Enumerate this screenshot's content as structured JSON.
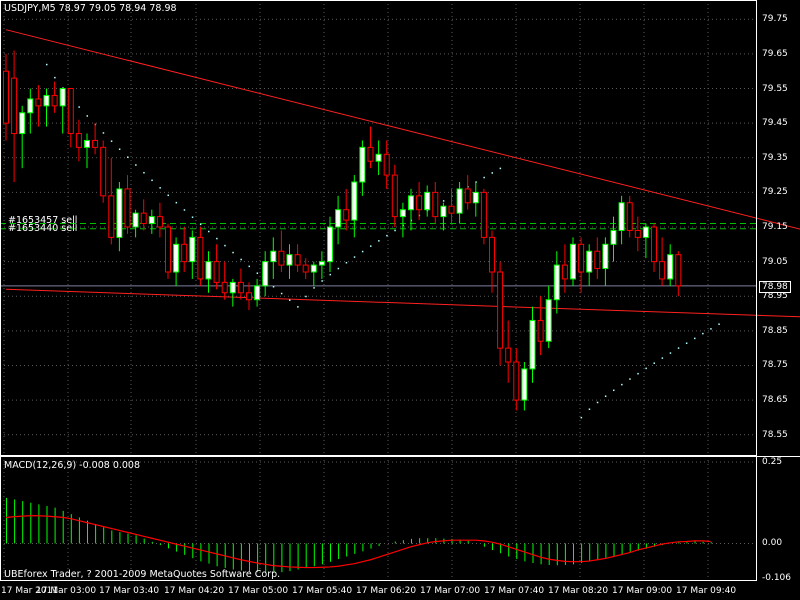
{
  "header": {
    "symbol_line": "USDJPY,M5  78.97 79.05 78.94 78.98"
  },
  "orders": [
    {
      "label": "#1653457 sell"
    },
    {
      "label": "#1653440 sell"
    }
  ],
  "indicator": {
    "label": "MACD(12,26,9) -0.008 0.008"
  },
  "footer": {
    "copyright": "UBEforex Trader, ? 2001-2009 MetaQuotes Software Corp."
  },
  "current_price": "78.98",
  "price_axis": [
    "79.75",
    "79.65",
    "79.55",
    "79.45",
    "79.35",
    "79.25",
    "79.15",
    "79.05",
    "78.95",
    "78.85",
    "78.75",
    "78.65",
    "78.55"
  ],
  "macd_axis": [
    "0.25",
    "0.00",
    "-0.106"
  ],
  "time_axis": [
    "17 Mar 2011",
    "17 Mar 03:00",
    "17 Mar 03:40",
    "17 Mar 04:20",
    "17 Mar 05:00",
    "17 Mar 05:40",
    "17 Mar 06:20",
    "17 Mar 07:00",
    "17 Mar 07:40",
    "17 Mar 08:20",
    "17 Mar 09:00",
    "17 Mar 09:40"
  ],
  "colors": {
    "background": "#000000",
    "grid": "#5a5a5a",
    "bull": "#ffffff",
    "bear": "#000000",
    "candle_outline_bull": "#00ff00",
    "candle_outline_bear": "#ff0000",
    "trendline": "#ff2020",
    "sar": "#b0ffff",
    "order_line": "#00c000",
    "macd_hist": "#00ff00",
    "signal": "#ff0000"
  },
  "chart_data": {
    "type": "candlestick",
    "timeframe": "M5",
    "price_range": [
      78.5,
      79.8
    ],
    "candles": [
      [
        79.6,
        79.65,
        79.4,
        79.45
      ],
      [
        79.58,
        79.66,
        79.28,
        79.42
      ],
      [
        79.42,
        79.5,
        79.32,
        79.48
      ],
      [
        79.48,
        79.55,
        79.42,
        79.52
      ],
      [
        79.52,
        79.56,
        79.44,
        79.5
      ],
      [
        79.5,
        79.55,
        79.44,
        79.53
      ],
      [
        79.53,
        79.57,
        79.48,
        79.5
      ],
      [
        79.5,
        79.55,
        79.42,
        79.55
      ],
      [
        79.55,
        79.55,
        79.38,
        79.42
      ],
      [
        79.42,
        79.46,
        79.34,
        79.38
      ],
      [
        79.38,
        79.42,
        79.32,
        79.4
      ],
      [
        79.4,
        79.45,
        79.36,
        79.38
      ],
      [
        79.38,
        79.4,
        79.22,
        79.24
      ],
      [
        79.24,
        79.35,
        79.1,
        79.12
      ],
      [
        79.12,
        79.28,
        79.08,
        79.26
      ],
      [
        79.26,
        79.3,
        79.13,
        79.15
      ],
      [
        79.15,
        79.2,
        79.12,
        79.19
      ],
      [
        79.19,
        79.23,
        79.14,
        79.16
      ],
      [
        79.16,
        79.2,
        79.13,
        79.18
      ],
      [
        79.18,
        79.22,
        79.12,
        79.15
      ],
      [
        79.15,
        79.16,
        79.0,
        79.02
      ],
      [
        79.02,
        79.12,
        78.98,
        79.1
      ],
      [
        79.1,
        79.15,
        79.02,
        79.05
      ],
      [
        79.05,
        79.14,
        79.0,
        79.12
      ],
      [
        79.12,
        79.15,
        78.98,
        79.0
      ],
      [
        79.0,
        79.08,
        78.96,
        79.05
      ],
      [
        79.05,
        79.1,
        78.97,
        78.99
      ],
      [
        78.99,
        79.05,
        78.94,
        78.96
      ],
      [
        78.96,
        79.0,
        78.92,
        78.99
      ],
      [
        78.99,
        79.03,
        78.94,
        78.96
      ],
      [
        78.96,
        78.99,
        78.91,
        78.94
      ],
      [
        78.94,
        79.0,
        78.92,
        78.98
      ],
      [
        78.98,
        79.08,
        78.95,
        79.05
      ],
      [
        79.05,
        79.12,
        79.0,
        79.08
      ],
      [
        79.08,
        79.14,
        79.02,
        79.04
      ],
      [
        79.04,
        79.1,
        79.0,
        79.07
      ],
      [
        79.07,
        79.1,
        79.02,
        79.04
      ],
      [
        79.04,
        79.06,
        79.0,
        79.02
      ],
      [
        79.02,
        79.05,
        78.98,
        79.04
      ],
      [
        79.04,
        79.08,
        79.0,
        79.05
      ],
      [
        79.05,
        79.18,
        79.02,
        79.15
      ],
      [
        79.15,
        79.24,
        79.1,
        79.2
      ],
      [
        79.2,
        79.26,
        79.14,
        79.17
      ],
      [
        79.17,
        79.3,
        79.12,
        79.28
      ],
      [
        79.28,
        79.4,
        79.24,
        79.38
      ],
      [
        79.38,
        79.44,
        79.32,
        79.34
      ],
      [
        79.34,
        79.4,
        79.3,
        79.36
      ],
      [
        79.36,
        79.4,
        79.26,
        79.3
      ],
      [
        79.3,
        79.33,
        79.15,
        79.18
      ],
      [
        79.18,
        79.22,
        79.12,
        79.2
      ],
      [
        79.2,
        79.26,
        79.14,
        79.24
      ],
      [
        79.24,
        79.28,
        79.17,
        79.2
      ],
      [
        79.2,
        79.27,
        79.18,
        79.25
      ],
      [
        79.25,
        79.28,
        79.16,
        79.18
      ],
      [
        79.18,
        79.22,
        79.14,
        79.21
      ],
      [
        79.21,
        79.26,
        79.16,
        79.19
      ],
      [
        79.19,
        79.28,
        79.16,
        79.26
      ],
      [
        79.26,
        79.3,
        79.2,
        79.22
      ],
      [
        79.22,
        79.28,
        79.18,
        79.25
      ],
      [
        79.25,
        79.26,
        79.1,
        79.12
      ],
      [
        79.12,
        79.14,
        78.96,
        79.02
      ],
      [
        79.02,
        79.05,
        78.75,
        78.8
      ],
      [
        78.8,
        78.88,
        78.7,
        78.76
      ],
      [
        78.76,
        78.8,
        78.62,
        78.65
      ],
      [
        78.65,
        78.76,
        78.62,
        78.74
      ],
      [
        78.74,
        78.92,
        78.7,
        78.88
      ],
      [
        78.88,
        78.95,
        78.78,
        78.82
      ],
      [
        78.82,
        78.98,
        78.8,
        78.94
      ],
      [
        78.94,
        79.08,
        78.9,
        79.04
      ],
      [
        79.04,
        79.1,
        78.96,
        79.0
      ],
      [
        79.0,
        79.12,
        78.98,
        79.1
      ],
      [
        79.1,
        79.12,
        78.96,
        79.02
      ],
      [
        79.02,
        79.1,
        78.98,
        79.08
      ],
      [
        79.08,
        79.12,
        79.0,
        79.03
      ],
      [
        79.03,
        79.12,
        78.98,
        79.1
      ],
      [
        79.1,
        79.18,
        79.05,
        79.14
      ],
      [
        79.14,
        79.24,
        79.1,
        79.22
      ],
      [
        79.22,
        79.24,
        79.12,
        79.14
      ],
      [
        79.14,
        79.18,
        79.08,
        79.12
      ],
      [
        79.12,
        79.16,
        79.06,
        79.15
      ],
      [
        79.15,
        79.16,
        79.02,
        79.05
      ],
      [
        79.05,
        79.12,
        78.98,
        79.0
      ],
      [
        79.0,
        79.1,
        78.98,
        79.07
      ],
      [
        79.07,
        79.08,
        78.95,
        78.98
      ]
    ],
    "trendlines": [
      {
        "from": [
          0,
          79.72
        ],
        "to": [
          95,
          79.14
        ]
      },
      {
        "from": [
          0,
          78.97
        ],
        "to": [
          95,
          78.89
        ]
      }
    ],
    "order_levels": [
      79.16,
      79.145
    ],
    "sar": [
      {
        "start": 5,
        "end": 36,
        "from": 79.62,
        "to": 78.92
      },
      {
        "start": 37,
        "end": 61,
        "from": 78.95,
        "to": 79.32
      },
      {
        "start": 71,
        "end": 88,
        "from": 78.6,
        "to": 78.87
      }
    ],
    "macd": {
      "range": [
        -0.106,
        0.25
      ],
      "histogram": [
        0.14,
        0.135,
        0.13,
        0.125,
        0.12,
        0.115,
        0.11,
        0.1,
        0.09,
        0.08,
        0.07,
        0.06,
        0.05,
        0.04,
        0.035,
        0.03,
        0.025,
        0.015,
        0.005,
        -0.005,
        -0.015,
        -0.025,
        -0.035,
        -0.045,
        -0.055,
        -0.062,
        -0.07,
        -0.075,
        -0.08,
        -0.083,
        -0.086,
        -0.088,
        -0.09,
        -0.09,
        -0.088,
        -0.085,
        -0.08,
        -0.075,
        -0.07,
        -0.064,
        -0.056,
        -0.048,
        -0.04,
        -0.032,
        -0.024,
        -0.016,
        -0.008,
        0.0,
        0.006,
        0.01,
        0.014,
        0.016,
        0.016,
        0.016,
        0.015,
        0.014,
        0.012,
        0.008,
        0.0,
        -0.01,
        -0.02,
        -0.03,
        -0.04,
        -0.048,
        -0.055,
        -0.06,
        -0.064,
        -0.066,
        -0.067,
        -0.066,
        -0.064,
        -0.06,
        -0.055,
        -0.05,
        -0.045,
        -0.04,
        -0.034,
        -0.028,
        -0.022,
        -0.016,
        -0.01,
        -0.005,
        0.0,
        0.004,
        0.006,
        0.006,
        0.005,
        0.004
      ],
      "signal": [
        0.08,
        0.082,
        0.084,
        0.085,
        0.085,
        0.084,
        0.082,
        0.08,
        0.076,
        0.07,
        0.064,
        0.058,
        0.052,
        0.046,
        0.04,
        0.034,
        0.028,
        0.022,
        0.016,
        0.01,
        0.004,
        -0.002,
        -0.008,
        -0.014,
        -0.02,
        -0.026,
        -0.032,
        -0.038,
        -0.044,
        -0.05,
        -0.055,
        -0.06,
        -0.064,
        -0.068,
        -0.07,
        -0.072,
        -0.073,
        -0.074,
        -0.074,
        -0.073,
        -0.072,
        -0.07,
        -0.066,
        -0.062,
        -0.056,
        -0.05,
        -0.042,
        -0.034,
        -0.026,
        -0.018,
        -0.01,
        -0.004,
        0.002,
        0.006,
        0.008,
        0.01,
        0.01,
        0.01,
        0.01,
        0.008,
        0.004,
        -0.002,
        -0.01,
        -0.018,
        -0.026,
        -0.034,
        -0.042,
        -0.048,
        -0.052,
        -0.055,
        -0.056,
        -0.056,
        -0.054,
        -0.05,
        -0.046,
        -0.04,
        -0.034,
        -0.028,
        -0.02,
        -0.014,
        -0.008,
        -0.002,
        0.002,
        0.005,
        0.006,
        0.008,
        0.008,
        0.006
      ]
    }
  }
}
